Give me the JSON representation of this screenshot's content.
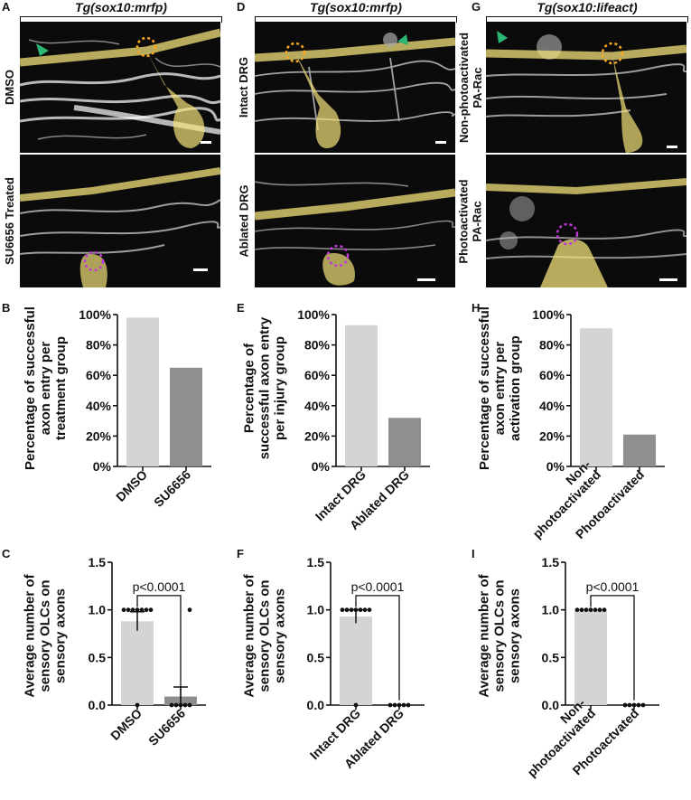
{
  "panel_letters": {
    "A": "A",
    "B": "B",
    "C": "C",
    "D": "D",
    "E": "E",
    "F": "F",
    "G": "G",
    "H": "H",
    "I": "I"
  },
  "headers": {
    "col1": "Tg(sox10:mrfp)",
    "col2": "Tg(sox10:mrfp)",
    "col3": "Tg(sox10:lifeact)"
  },
  "micrograph_labels": {
    "a_top": "DMSO",
    "a_bottom": "SU6656 Treated",
    "d_top": "Intact DRG",
    "d_bottom": "Ablated DRG",
    "g_top_line1": "Non-photoactivated",
    "g_top_line2": "PA-Rac",
    "g_bottom_line1": "Photoactivated",
    "g_bottom_line2": "PA-Rac"
  },
  "colors": {
    "light_bar": "#d4d4d4",
    "dark_bar": "#8f8f8f",
    "axon_overlay": "#f3e27a",
    "entry_ring": "#f5a623",
    "failed_ring": "#c03ad6",
    "arrowhead": "#2bb673"
  },
  "chart_data": [
    {
      "panel": "B",
      "type": "bar",
      "categories": [
        "DMSO",
        "SU6656"
      ],
      "values": [
        98,
        65
      ],
      "ylabel": "Percentage of successful axon entry per treatment group",
      "yticks": [
        "0%",
        "20%",
        "40%",
        "60%",
        "80%",
        "100%"
      ],
      "ylim": [
        0,
        100
      ]
    },
    {
      "panel": "E",
      "type": "bar",
      "categories": [
        "Intact DRG",
        "Ablated DRG"
      ],
      "values": [
        93,
        32
      ],
      "ylabel": "Percentage of successful axon entry per injury group",
      "yticks": [
        "0%",
        "20%",
        "40%",
        "60%",
        "80%",
        "100%"
      ],
      "ylim": [
        0,
        100
      ]
    },
    {
      "panel": "H",
      "type": "bar",
      "categories": [
        "Non-photoactivated",
        "Photoactivated"
      ],
      "values": [
        91,
        21
      ],
      "ylabel": "Percentage of successful axon entry per activation group",
      "yticks": [
        "0%",
        "20%",
        "40%",
        "60%",
        "80%",
        "100%"
      ],
      "ylim": [
        0,
        100
      ]
    },
    {
      "panel": "C",
      "type": "bar",
      "categories": [
        "DMSO",
        "SU6656"
      ],
      "values": [
        0.88,
        0.09
      ],
      "errors": [
        0.1,
        0.1
      ],
      "ylabel": "Average number of sensory OLCs on sensory axons",
      "yticks": [
        "0.0",
        "0.5",
        "1.0",
        "1.5"
      ],
      "ylim": [
        0,
        1.5
      ],
      "annotation": "p<0.0001"
    },
    {
      "panel": "F",
      "type": "bar",
      "categories": [
        "Intact DRG",
        "Ablated DRG"
      ],
      "values": [
        0.93,
        0.0
      ],
      "errors": [
        0.07,
        0
      ],
      "ylabel": "Average number of sensory OLCs on sensory axons",
      "yticks": [
        "0.0",
        "0.5",
        "1.0",
        "1.5"
      ],
      "ylim": [
        0,
        1.5
      ],
      "annotation": "p<0.0001"
    },
    {
      "panel": "I",
      "type": "bar",
      "categories": [
        "Non-photoactivated",
        "Photoactvated"
      ],
      "values": [
        1.0,
        0.0
      ],
      "errors": [
        0,
        0
      ],
      "ylabel": "Average number of sensory OLCs on sensory axons",
      "yticks": [
        "0.0",
        "0.5",
        "1.0",
        "1.5"
      ],
      "ylim": [
        0,
        1.5
      ],
      "annotation": "p<0.0001"
    }
  ]
}
